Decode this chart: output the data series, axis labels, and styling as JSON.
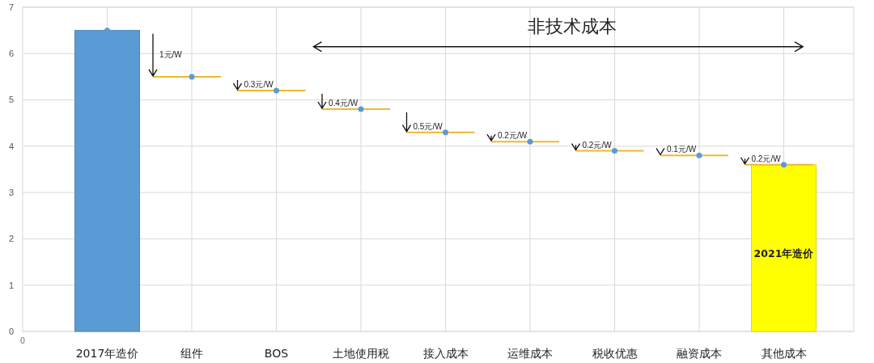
{
  "chart_data": {
    "type": "bar",
    "categories": [
      "0",
      "2017年造价",
      "组件",
      "BOS",
      "土地使用税",
      "接入成本",
      "运维成本",
      "税收优惠",
      "融资成本",
      "其他成本"
    ],
    "series": [
      {
        "values": [
          null,
          6.5,
          null,
          null,
          null,
          null,
          null,
          null,
          null,
          3.6
        ],
        "colors": [
          null,
          "#5b9bd5",
          null,
          null,
          null,
          null,
          null,
          null,
          null,
          "#ffff00"
        ]
      },
      {
        "type": "scatter",
        "color": "#5b9bd5",
        "values": [
          null,
          6.5,
          5.5,
          5.2,
          4.8,
          4.3,
          4.1,
          3.9,
          3.8,
          3.6
        ]
      }
    ],
    "ylim": [
      0,
      7
    ],
    "yticks": [
      0,
      1,
      2,
      3,
      4,
      5,
      6,
      7
    ],
    "grid": true,
    "marker": "circle",
    "annotations": [
      "非技术成本",
      "2021年造价",
      {
        "text": "1元/W",
        "x": "组件",
        "y": 5.5
      },
      {
        "text": "0.3元/W",
        "x": "BOS",
        "y": 5.2
      },
      {
        "text": "0.4元/W",
        "x": "土地使用税",
        "y": 4.8
      },
      {
        "text": "0.5元/W",
        "x": "接入成本",
        "y": 4.3
      },
      {
        "text": "0.2元/W",
        "x": "运维成本",
        "y": 4.1
      },
      {
        "text": "0.2元/W",
        "x": "税收优惠",
        "y": 3.9
      },
      {
        "text": "0.1元/W",
        "x": "融资成本",
        "y": 3.8
      },
      {
        "text": "0.2元/W",
        "x": "其他成本",
        "y": 3.6
      }
    ]
  }
}
